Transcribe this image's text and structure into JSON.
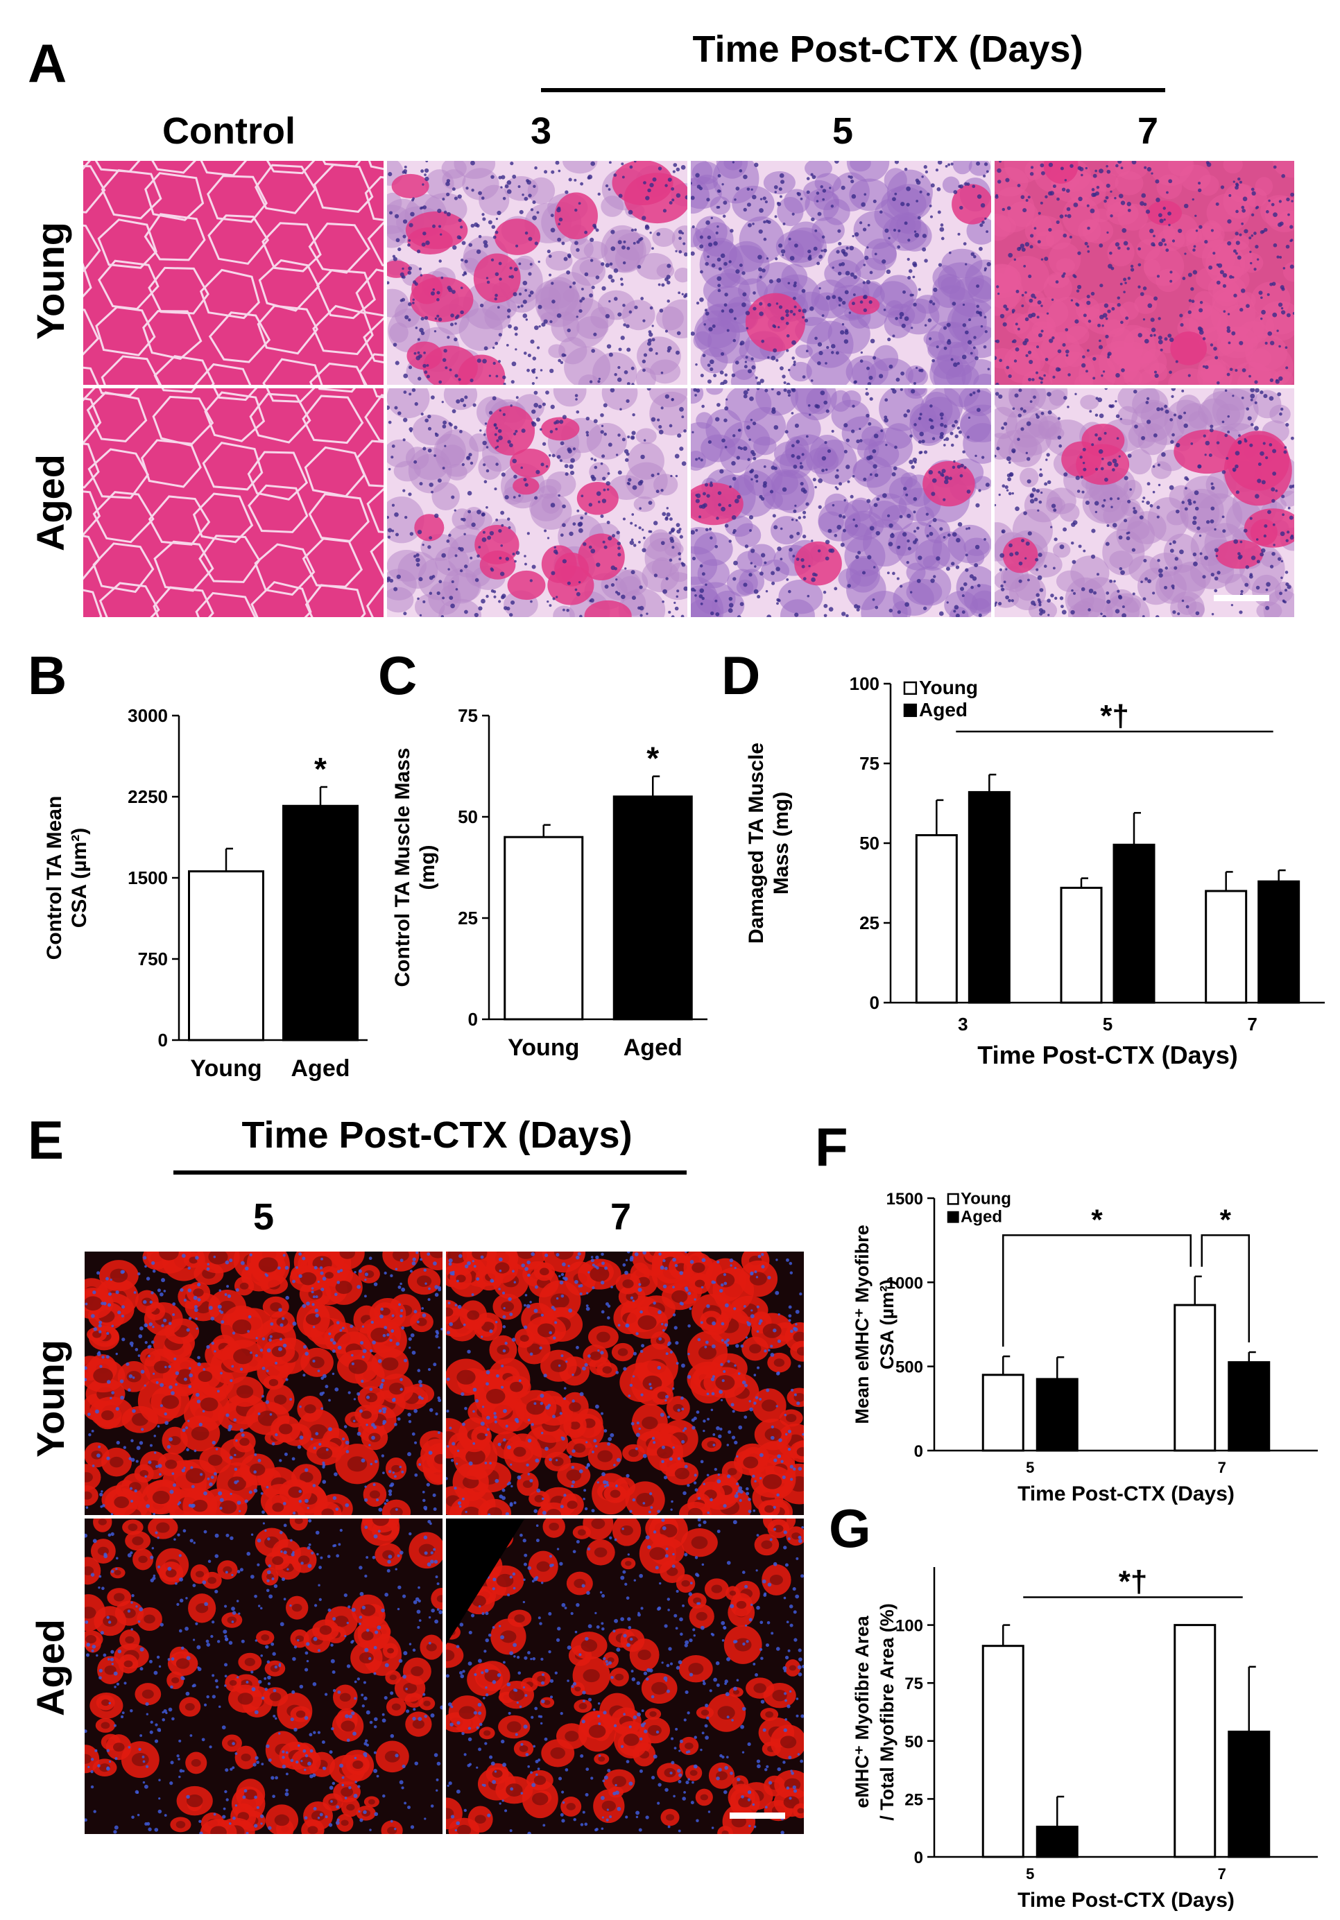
{
  "panel_letters": {
    "a": "A",
    "b": "B",
    "c": "C",
    "d": "D",
    "e": "E",
    "f": "F",
    "g": "G"
  },
  "panel_a": {
    "header": "Time Post-CTX (Days)",
    "columns": [
      "Control",
      "3",
      "5",
      "7"
    ],
    "rows": [
      "Young",
      "Aged"
    ],
    "stain_colors": {
      "eosin": "#e23a86",
      "hematoxylin": "#7c4fb0",
      "background": "#f0d8ee",
      "nuclei": "#3a2c8a"
    }
  },
  "panel_e": {
    "header": "Time Post-CTX (Days)",
    "columns": [
      "5",
      "7"
    ],
    "rows": [
      "Young",
      "Aged"
    ],
    "stain_colors": {
      "emhc": "#e11b0f",
      "dapi": "#3f5bd8",
      "background": "#180608"
    }
  },
  "chart_data": [
    {
      "id": "B",
      "type": "bar",
      "ylabel": [
        "Control TA Mean",
        "CSA (µm²)"
      ],
      "categories": [
        "Young",
        "Aged"
      ],
      "values": [
        1560,
        2165
      ],
      "errors": [
        210,
        175
      ],
      "fills": [
        "#ffffff",
        "#000000"
      ],
      "ylim": [
        0,
        3000
      ],
      "yticks": [
        0,
        750,
        1500,
        2250,
        3000
      ],
      "annotations": [
        {
          "text": "*",
          "category": 1
        }
      ]
    },
    {
      "id": "C",
      "type": "bar",
      "ylabel": [
        "Control TA Muscle Mass",
        "(mg)"
      ],
      "categories": [
        "Young",
        "Aged"
      ],
      "values": [
        45,
        55
      ],
      "errors": [
        3,
        5
      ],
      "fills": [
        "#ffffff",
        "#000000"
      ],
      "ylim": [
        0,
        75
      ],
      "yticks": [
        0,
        25,
        50,
        75
      ],
      "annotations": [
        {
          "text": "*",
          "category": 1
        }
      ]
    },
    {
      "id": "D",
      "type": "bar",
      "ylabel": [
        "Damaged TA Muscle",
        "Mass (mg)"
      ],
      "xlabel": "Time Post-CTX (Days)",
      "categories": [
        "3",
        "5",
        "7"
      ],
      "series": [
        {
          "name": "Young",
          "values": [
            52.5,
            36,
            35
          ],
          "errors": [
            11,
            3,
            6
          ],
          "fill": "#ffffff"
        },
        {
          "name": "Aged",
          "values": [
            66,
            49.5,
            38
          ],
          "errors": [
            5.5,
            10,
            3.5
          ],
          "fill": "#000000"
        }
      ],
      "ylim": [
        0,
        100
      ],
      "yticks": [
        0,
        25,
        50,
        75,
        100
      ],
      "legend": "top-left",
      "significance": [
        {
          "text": "*†",
          "type": "span"
        }
      ]
    },
    {
      "id": "F",
      "type": "bar",
      "ylabel": [
        "Mean eMHC⁺ Myofibre",
        "CSA (µm²)"
      ],
      "xlabel": "Time Post-CTX (Days)",
      "categories": [
        "5",
        "7"
      ],
      "series": [
        {
          "name": "Young",
          "values": [
            450,
            865
          ],
          "errors": [
            110,
            170
          ],
          "fill": "#ffffff"
        },
        {
          "name": "Aged",
          "values": [
            425,
            525
          ],
          "errors": [
            130,
            60
          ],
          "fill": "#000000"
        }
      ],
      "ylim": [
        0,
        1500
      ],
      "yticks": [
        0,
        500,
        1000,
        1500
      ],
      "legend": "top-left",
      "significance": [
        {
          "text": "*",
          "type": "bracket",
          "between": "Young 5 vs Young 7"
        },
        {
          "text": "*",
          "type": "bracket",
          "between": "Young 7 vs Aged 7"
        }
      ]
    },
    {
      "id": "G",
      "type": "bar",
      "ylabel": [
        "eMHC⁺ Myofibre Area",
        "/ Total Myofibre Area (%)"
      ],
      "xlabel": "Time Post-CTX (Days)",
      "categories": [
        "5",
        "7"
      ],
      "series": [
        {
          "name": "Young",
          "values": [
            91,
            100
          ],
          "errors": [
            9,
            0
          ],
          "fill": "#ffffff"
        },
        {
          "name": "Aged",
          "values": [
            13,
            54
          ],
          "errors": [
            13,
            28
          ],
          "fill": "#000000"
        }
      ],
      "ylim": [
        0,
        125
      ],
      "yticks": [
        0,
        25,
        50,
        75,
        100
      ],
      "significance": [
        {
          "text": "*†",
          "type": "span"
        }
      ]
    }
  ]
}
